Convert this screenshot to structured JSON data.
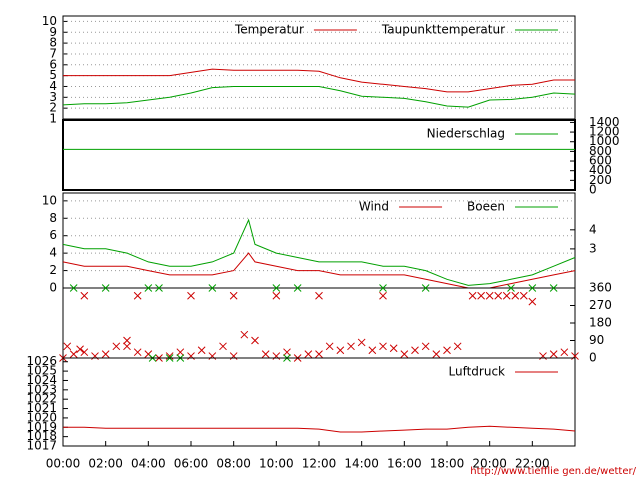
{
  "chart_data": [
    {
      "type": "line",
      "legend": "upper right",
      "grid": true,
      "xlim": [
        0,
        24
      ],
      "x": [
        0,
        1,
        2,
        3,
        4,
        5,
        6,
        7,
        8,
        9,
        10,
        11,
        12,
        13,
        14,
        15,
        16,
        17,
        18,
        19,
        20,
        21,
        22,
        23,
        24
      ],
      "ylim": [
        1,
        10.5
      ],
      "yticks": [
        1,
        2,
        3,
        4,
        5,
        6,
        7,
        8,
        9,
        10
      ],
      "series": [
        {
          "name": "Temperatur",
          "color": "#cc0000",
          "values": [
            5.0,
            5.0,
            5.0,
            5.0,
            5.0,
            5.0,
            5.3,
            5.6,
            5.5,
            5.5,
            5.5,
            5.5,
            5.4,
            4.8,
            4.4,
            4.2,
            4.0,
            3.8,
            3.5,
            3.5,
            3.8,
            4.1,
            4.2,
            4.6,
            4.6
          ]
        },
        {
          "name": "Taupunkttemperatur",
          "color": "#00a000",
          "values": [
            2.3,
            2.4,
            2.4,
            2.5,
            2.75,
            3.0,
            3.4,
            3.9,
            4.0,
            4.0,
            4.0,
            4.0,
            4.0,
            3.6,
            3.1,
            3.0,
            2.9,
            2.6,
            2.2,
            2.1,
            2.75,
            2.8,
            3.0,
            3.4,
            3.3
          ]
        }
      ]
    },
    {
      "type": "line",
      "legend": "upper right",
      "grid": false,
      "xlim": [
        0,
        24
      ],
      "x": [
        0,
        24
      ],
      "ylim": [
        0,
        1450
      ],
      "y2lim": [
        0,
        1450
      ],
      "y2ticks": [
        0,
        200,
        400,
        600,
        800,
        1000,
        1200,
        1400
      ],
      "series": [
        {
          "name": "Niederschlag",
          "color": "#00a000",
          "axis": "y2",
          "values": [
            840,
            840
          ]
        }
      ]
    },
    {
      "type": "line",
      "legend": "upper right",
      "grid": true,
      "xlim": [
        0,
        24
      ],
      "x": [
        0,
        1,
        2,
        3,
        4,
        5,
        6,
        7,
        8,
        8.7,
        9,
        10,
        11,
        12,
        13,
        14,
        15,
        16,
        17,
        18,
        19,
        20,
        21,
        22,
        23,
        24
      ],
      "ylim": [
        0,
        10.9
      ],
      "yticks": [
        0,
        2,
        4,
        6,
        8,
        10
      ],
      "y2lim": [
        0.95,
        5.93
      ],
      "y2ticks": [
        3,
        4
      ],
      "series": [
        {
          "name": "Wind",
          "color": "#cc0000",
          "values": [
            3,
            2.5,
            2.5,
            2.5,
            2,
            1.5,
            1.5,
            1.5,
            2,
            4,
            3,
            2.5,
            2,
            2,
            1.5,
            1.5,
            1.5,
            1.5,
            1,
            0.5,
            0,
            0,
            0.5,
            1,
            1.5,
            2
          ]
        },
        {
          "name": "Boeen",
          "color": "#00a000",
          "values": [
            5,
            4.5,
            4.5,
            4,
            3,
            2.5,
            2.5,
            3,
            4,
            7.8,
            5,
            4,
            3.5,
            3,
            3,
            3,
            2.5,
            2.5,
            2,
            1,
            0.3,
            0.5,
            1,
            1.5,
            2.5,
            3.5
          ]
        }
      ]
    },
    {
      "type": "scatter",
      "grid": false,
      "xlim": [
        0,
        24
      ],
      "ylim": [
        0,
        360
      ],
      "y2lim": [
        0,
        360
      ],
      "y2ticks": [
        0,
        90,
        180,
        270,
        360
      ],
      "series": [
        {
          "color": "#cc0000",
          "axis": "y2",
          "x": [
            0,
            0.2,
            0.5,
            0.8,
            1,
            1.5,
            2,
            2.5,
            3,
            3,
            3.5,
            4,
            4.5,
            5,
            5.5,
            6,
            6.5,
            7,
            7.5,
            8,
            8.5,
            9,
            9.5,
            10,
            10.5,
            11,
            11.5,
            12,
            12.5,
            13,
            13.5,
            14,
            14.5,
            15,
            15.5,
            16,
            16.5,
            17,
            17.5,
            18,
            18.5,
            19.2,
            19.6,
            20,
            20.4,
            20.8,
            21.2,
            21.6,
            22,
            22.5,
            23,
            23.5,
            24,
            1,
            3.5,
            6,
            8,
            10,
            12,
            15
          ],
          "values": [
            0,
            60,
            20,
            45,
            30,
            10,
            20,
            60,
            90,
            60,
            30,
            20,
            0,
            10,
            30,
            10,
            40,
            10,
            60,
            10,
            120,
            90,
            20,
            10,
            30,
            0,
            20,
            20,
            60,
            40,
            60,
            80,
            40,
            60,
            50,
            20,
            40,
            60,
            20,
            40,
            60,
            320,
            320,
            320,
            320,
            320,
            320,
            320,
            290,
            10,
            20,
            30,
            10,
            320,
            320,
            320,
            320,
            320,
            320,
            320
          ]
        },
        {
          "color": "#00a000",
          "axis": "y2",
          "x": [
            0.5,
            2,
            4,
            4.5,
            7,
            10,
            11,
            15,
            17,
            21,
            22,
            23,
            4.2,
            5,
            5.5,
            10.5
          ],
          "values": [
            360,
            360,
            360,
            360,
            360,
            360,
            360,
            360,
            360,
            360,
            360,
            360,
            0,
            0,
            0,
            0
          ]
        }
      ]
    },
    {
      "type": "line",
      "legend": "upper right",
      "grid": false,
      "xlim": [
        0,
        24
      ],
      "x": [
        0,
        1,
        2,
        3,
        4,
        5,
        6,
        7,
        8,
        9,
        10,
        11,
        12,
        13,
        14,
        15,
        16,
        17,
        18,
        19,
        20,
        21,
        22,
        23,
        24
      ],
      "ylim": [
        1017,
        1026.4
      ],
      "yticks": [
        1017,
        1018,
        1019,
        1020,
        1021,
        1022,
        1023,
        1024,
        1025,
        1026
      ],
      "xticks": [
        {
          "value": 0,
          "label": "00:00"
        },
        {
          "value": 2,
          "label": "02:00"
        },
        {
          "value": 4,
          "label": "04:00"
        },
        {
          "value": 6,
          "label": "06:00"
        },
        {
          "value": 8,
          "label": "08:00"
        },
        {
          "value": 10,
          "label": "10:00"
        },
        {
          "value": 12,
          "label": "12:00"
        },
        {
          "value": 14,
          "label": "14:00"
        },
        {
          "value": 16,
          "label": "16:00"
        },
        {
          "value": 18,
          "label": "18:00"
        },
        {
          "value": 20,
          "label": "20:00"
        },
        {
          "value": 22,
          "label": "22:00"
        }
      ],
      "series": [
        {
          "name": "Luftdruck",
          "color": "#cc0000",
          "values": [
            1019.0,
            1019.0,
            1018.9,
            1018.9,
            1018.9,
            1018.9,
            1018.9,
            1018.9,
            1018.9,
            1018.9,
            1018.9,
            1018.9,
            1018.8,
            1018.5,
            1018.5,
            1018.6,
            1018.7,
            1018.8,
            1018.8,
            1019.0,
            1019.1,
            1019.0,
            1018.9,
            1018.8,
            1018.6
          ]
        }
      ]
    }
  ],
  "footer": "http://www.tiefflie gen.de/wetter/"
}
